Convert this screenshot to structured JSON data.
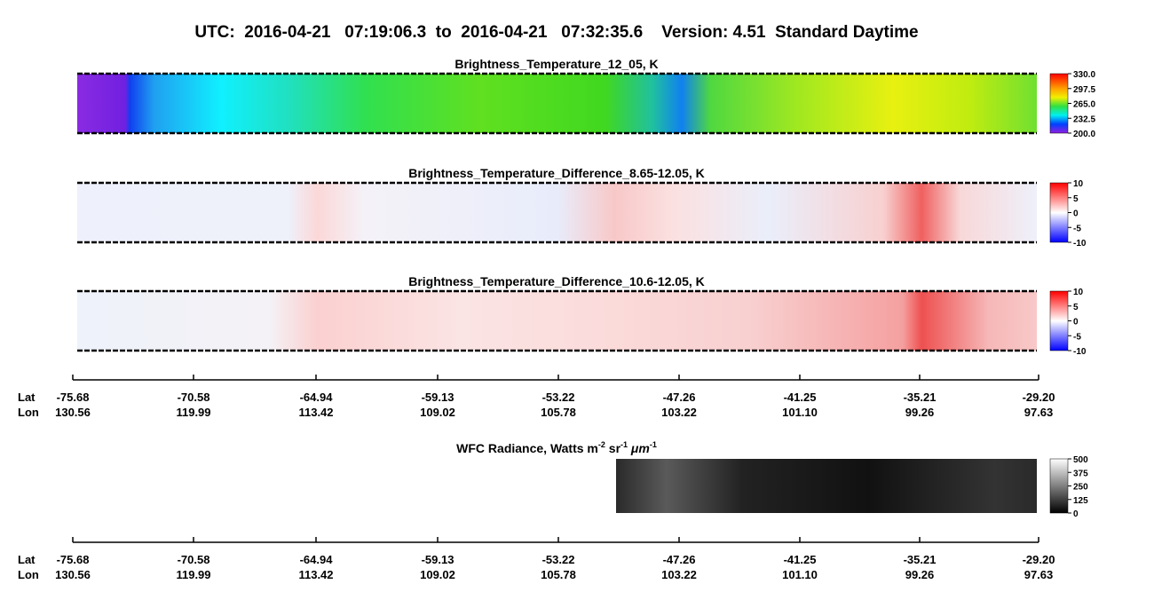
{
  "title": "UTC:  2016-04-21   07:19:06.3  to  2016-04-21   07:32:35.6    Version: 4.51  Standard Daytime",
  "panels": [
    {
      "title": "Brightness_Temperature_12_05, K",
      "colorbar_ticks": [
        "330.0",
        "297.5",
        "265.0",
        "232.5",
        "200.0"
      ]
    },
    {
      "title": "Brightness_Temperature_Difference_8.65-12.05, K",
      "colorbar_ticks": [
        "10",
        "5",
        "0",
        "-5",
        "-10"
      ]
    },
    {
      "title": "Brightness_Temperature_Difference_10.6-12.05, K",
      "colorbar_ticks": [
        "10",
        "5",
        "0",
        "-5",
        "-10"
      ]
    }
  ],
  "wfc": {
    "title_parts": [
      "WFC Radiance, Watts m",
      "-2",
      " sr",
      "-1",
      " μm",
      "-1"
    ],
    "colorbar_ticks": [
      "500",
      "375",
      "250",
      "125",
      "0"
    ]
  },
  "axis": {
    "lat_label": "Lat",
    "lon_label": "Lon",
    "lat": [
      "-75.68",
      "-70.58",
      "-64.94",
      "-59.13",
      "-53.22",
      "-47.26",
      "-41.25",
      "-35.21",
      "-29.20"
    ],
    "lon": [
      "130.56",
      "119.99",
      "113.42",
      "109.02",
      "105.78",
      "103.22",
      "101.10",
      "99.26",
      "97.63"
    ]
  }
}
